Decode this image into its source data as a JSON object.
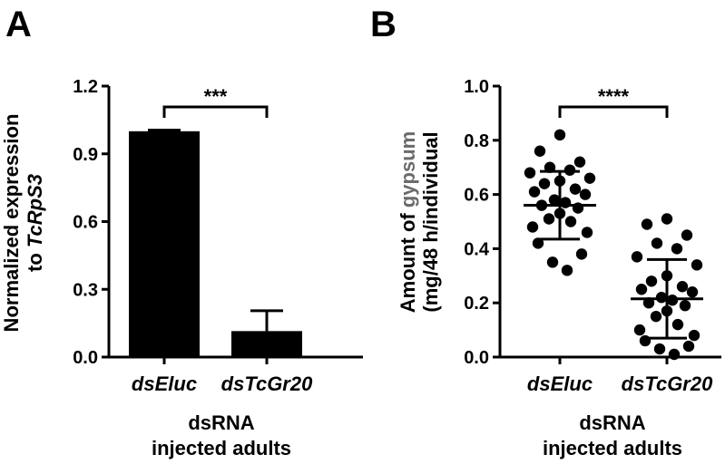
{
  "chart_data": [
    {
      "panel": "A",
      "type": "bar",
      "categories": [
        "dsEluc",
        "dsTcGr20"
      ],
      "values": [
        1.0,
        0.115
      ],
      "errors": [
        0.005,
        0.09
      ],
      "ylabel_line1": "Normalized expression",
      "ylabel_line2_prefix": "to ",
      "ylabel_line2_gene": "TcRpS3",
      "xlabel_line1": "dsRNA",
      "xlabel_line2": "injected adults",
      "ylim": [
        0,
        1.2
      ],
      "yticks": [
        "0.0",
        "0.3",
        "0.6",
        "0.9",
        "1.2"
      ],
      "significance": "***",
      "bar_color": "#000000"
    },
    {
      "panel": "B",
      "type": "scatter",
      "categories": [
        "dsEluc",
        "dsTcGr20"
      ],
      "series": [
        {
          "name": "dsEluc",
          "values": [
            0.82,
            0.76,
            0.72,
            0.7,
            0.69,
            0.68,
            0.66,
            0.65,
            0.64,
            0.62,
            0.61,
            0.6,
            0.58,
            0.57,
            0.56,
            0.55,
            0.53,
            0.51,
            0.5,
            0.48,
            0.46,
            0.42,
            0.38,
            0.35,
            0.32
          ],
          "mean": 0.56,
          "sd": 0.125
        },
        {
          "name": "dsTcGr20",
          "values": [
            0.51,
            0.49,
            0.45,
            0.42,
            0.4,
            0.37,
            0.34,
            0.3,
            0.28,
            0.26,
            0.25,
            0.24,
            0.22,
            0.21,
            0.2,
            0.19,
            0.17,
            0.15,
            0.12,
            0.1,
            0.08,
            0.06,
            0.04,
            0.03,
            0.01
          ],
          "mean": 0.215,
          "sd": 0.145
        }
      ],
      "ylabel_line1_prefix": "Amount of ",
      "ylabel_line1_word": "gypsum",
      "ylabel_line2": "(mg/48 h/individual",
      "xlabel_line1": "dsRNA",
      "xlabel_line2": "injected adults",
      "ylim": [
        0,
        1.0
      ],
      "yticks": [
        "0.0",
        "0.2",
        "0.4",
        "0.6",
        "0.8",
        "1.0"
      ],
      "significance": "****",
      "gypsum_color": "#6b6b6b"
    }
  ],
  "panels": {
    "a_label": "A",
    "b_label": "B"
  }
}
